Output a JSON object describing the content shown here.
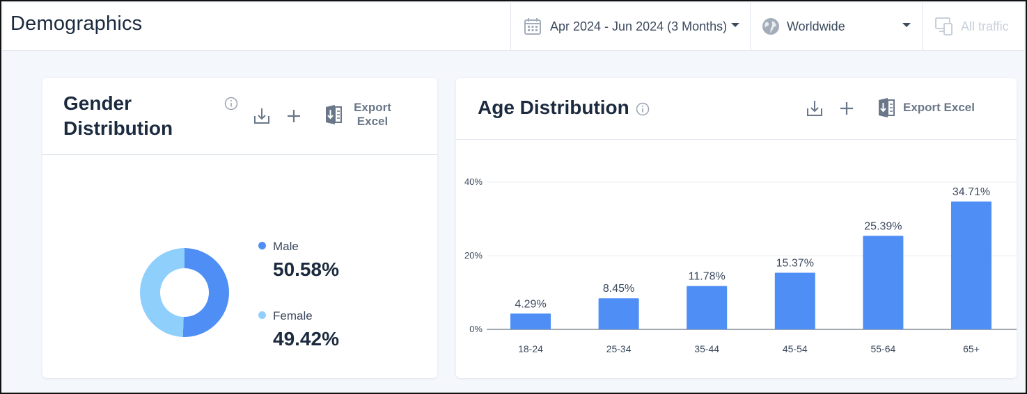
{
  "header": {
    "title": "Demographics",
    "date_range": "Apr 2024 - Jun 2024 (3 Months)",
    "region": "Worldwide",
    "traffic": "All traffic",
    "icons": [
      "calendar-icon",
      "globe-icon",
      "devices-icon"
    ]
  },
  "gender": {
    "title_line1": "Gender",
    "title_line2": "Distribution",
    "export_line1": "Export",
    "export_line2": "Excel",
    "male_label": "Male",
    "male_value": "50.58%",
    "female_label": "Female",
    "female_value": "49.42%",
    "colors": {
      "male": "#4f8ef5",
      "female": "#8fcffb"
    }
  },
  "age": {
    "title": "Age Distribution",
    "export_label": "Export Excel"
  },
  "chart_data": [
    {
      "type": "pie",
      "title": "Gender Distribution",
      "categories": [
        "Male",
        "Female"
      ],
      "values": [
        50.58,
        49.42
      ],
      "colors": [
        "#4f8ef5",
        "#8fcffb"
      ],
      "legend": "right"
    },
    {
      "type": "bar",
      "title": "Age Distribution",
      "categories": [
        "18-24",
        "25-34",
        "35-44",
        "45-54",
        "55-64",
        "65+"
      ],
      "values": [
        4.29,
        8.45,
        11.78,
        15.37,
        25.39,
        34.71
      ],
      "value_labels": [
        "4.29%",
        "8.45%",
        "11.78%",
        "15.37%",
        "25.39%",
        "34.71%"
      ],
      "yticks": [
        "0%",
        "20%",
        "40%"
      ],
      "ylim": [
        0,
        40
      ],
      "grid": true,
      "color": "#4f8ef5"
    }
  ]
}
